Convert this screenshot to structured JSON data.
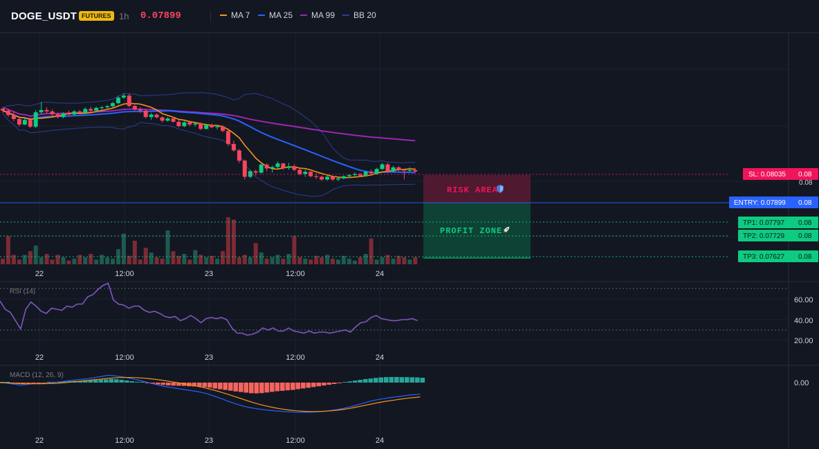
{
  "header": {
    "symbol": "DOGE_USDT",
    "badge": "FUTURES",
    "timeframe": "1h",
    "price": "0.07899",
    "indicators": [
      {
        "label": "MA 7",
        "color": "#f7931a"
      },
      {
        "label": "MA 25",
        "color": "#2962ff"
      },
      {
        "label": "MA 99",
        "color": "#9c27b0"
      },
      {
        "label": "BB 20",
        "color": "#2a3f8f"
      }
    ]
  },
  "colors": {
    "background": "#131722",
    "up": "#26a69a",
    "up_bright": "#0ecb81",
    "down": "#f6465d",
    "sl": "#f0145a",
    "entry": "#2962ff",
    "tp": "#0ecb81"
  },
  "zones": {
    "risk_label": "RISK AREA",
    "profit_label": "PROFIT ZONE"
  },
  "price_tags": {
    "sl": {
      "label": "SL: 0.08035",
      "right": "0.08",
      "value": 0.08035
    },
    "entry": {
      "label": "ENTRY: 0.07899",
      "right": "0.08",
      "value": 0.07899
    },
    "tp1": {
      "label": "TP1: 0.07797",
      "right": "0.08",
      "value": 0.07797
    },
    "tp2": {
      "label": "TP2: 0.07729",
      "right": "0.08",
      "value": 0.07729
    },
    "tp3": {
      "label": "TP3: 0.07627",
      "right": "0.08",
      "value": 0.07627
    }
  },
  "main_axis": {
    "hidden_tick": "0.08"
  },
  "time_axis": {
    "labels": [
      "22",
      "12:00",
      "23",
      "12:00",
      "24"
    ]
  },
  "rsi": {
    "label": "RSI (14)",
    "ticks": [
      "60.00",
      "40.00",
      "20.00"
    ],
    "values": [
      58,
      50,
      47,
      39,
      31,
      50,
      57,
      53,
      48,
      46,
      51,
      50,
      49,
      53,
      52,
      55,
      55,
      62,
      64,
      69,
      73,
      75,
      59,
      55,
      54,
      51,
      53,
      53,
      49,
      47,
      48,
      46,
      43,
      42,
      43,
      39,
      41,
      44,
      41,
      37,
      41,
      42,
      41,
      42,
      40,
      32,
      27,
      27,
      25,
      26,
      28,
      32,
      30,
      32,
      29,
      29,
      32,
      29,
      28,
      27,
      29,
      27,
      28,
      28,
      27,
      28,
      29,
      30,
      28,
      33,
      37,
      38,
      42,
      44,
      41,
      40,
      39,
      39,
      40,
      40,
      41,
      39
    ]
  },
  "macd": {
    "label": "MACD (12, 26, 9)",
    "tick": "0.00",
    "histogram": [
      0.2,
      0.1,
      -0.1,
      -0.3,
      -0.6,
      -0.5,
      -0.3,
      -0.2,
      -0.1,
      0.1,
      0.3,
      0.5,
      0.7,
      0.9,
      1.1,
      1.2,
      1.4,
      1.5,
      1.7,
      1.9,
      2.1,
      2.4,
      2.2,
      1.8,
      1.4,
      0.9,
      0.5,
      0.1,
      -0.4,
      -0.8,
      -1.2,
      -1.5,
      -1.8,
      -2.0,
      -2.1,
      -2.2,
      -2.4,
      -2.5,
      -2.6,
      -2.9,
      -3.3,
      -3.9,
      -4.4,
      -4.8,
      -5.3,
      -5.8,
      -6.2,
      -6.6,
      -7.0,
      -7.1,
      -6.9,
      -6.5,
      -6.1,
      -5.7,
      -5.4,
      -5.1,
      -4.8,
      -4.3,
      -3.8,
      -3.4,
      -2.9,
      -2.4,
      -1.9,
      -1.4,
      -0.9,
      -0.3,
      0.3,
      0.8,
      1.3,
      1.8,
      2.3,
      2.7,
      3.1,
      3.4,
      3.6,
      3.7,
      3.7,
      3.6,
      3.6,
      3.5,
      3.4,
      3.2
    ],
    "macd_line": [
      0.0,
      -0.3,
      -0.8,
      -1.3,
      -1.9,
      -1.5,
      -1.0,
      -0.8,
      -0.8,
      -0.6,
      -0.2,
      0.3,
      0.8,
      1.3,
      1.8,
      2.2,
      2.6,
      3.0,
      3.6,
      4.3,
      5.0,
      5.6,
      5.2,
      4.7,
      4.1,
      3.3,
      2.5,
      1.6,
      0.6,
      -0.4,
      -1.4,
      -2.3,
      -3.1,
      -3.8,
      -4.4,
      -5.0,
      -5.6,
      -6.2,
      -6.8,
      -7.6,
      -8.6,
      -9.9,
      -11.3,
      -12.7,
      -14.2,
      -15.6,
      -16.9,
      -18.0,
      -18.9,
      -19.6,
      -20.2,
      -20.7,
      -21.1,
      -21.5,
      -21.8,
      -22.1,
      -22.3,
      -22.5,
      -22.6,
      -22.6,
      -22.5,
      -22.3,
      -22.0,
      -21.6,
      -21.1,
      -20.5,
      -19.8,
      -18.9,
      -17.9,
      -16.8,
      -15.7,
      -14.6,
      -13.6,
      -12.8,
      -12.2,
      -11.6,
      -11.0,
      -10.5,
      -10.0,
      -9.5,
      -9.1,
      -8.8
    ],
    "signal_line": [
      0.0,
      -0.1,
      -0.3,
      -0.5,
      -0.8,
      -0.9,
      -0.9,
      -0.9,
      -0.9,
      -0.8,
      -0.7,
      -0.5,
      -0.2,
      0.1,
      0.5,
      0.9,
      1.3,
      1.7,
      2.1,
      2.5,
      2.9,
      3.3,
      3.6,
      3.8,
      3.9,
      3.9,
      3.8,
      3.6,
      3.3,
      2.9,
      2.4,
      1.9,
      1.3,
      0.7,
      0.1,
      -0.6,
      -1.3,
      -2.0,
      -2.8,
      -3.6,
      -4.5,
      -5.5,
      -6.6,
      -7.8,
      -9.0,
      -10.3,
      -11.6,
      -12.9,
      -14.2,
      -15.4,
      -16.5,
      -17.5,
      -18.4,
      -19.2,
      -19.9,
      -20.5,
      -21.0,
      -21.4,
      -21.7,
      -21.9,
      -22.0,
      -22.0,
      -21.9,
      -21.7,
      -21.4,
      -21.0,
      -20.5,
      -19.9,
      -19.2,
      -18.4,
      -17.6,
      -16.8,
      -16.0,
      -15.2,
      -14.5,
      -13.9,
      -13.3,
      -12.7,
      -12.2,
      -11.7,
      -11.3,
      -10.9
    ]
  },
  "chart_data": {
    "type": "candlestick",
    "symbol": "DOGE_USDT",
    "interval": "1h",
    "ohlc": [
      [
        0.08125,
        0.08129,
        0.0811,
        0.08118
      ],
      [
        0.08118,
        0.08125,
        0.08095,
        0.08102
      ],
      [
        0.08102,
        0.08115,
        0.0808,
        0.08088
      ],
      [
        0.08088,
        0.08098,
        0.0806,
        0.08068
      ],
      [
        0.08068,
        0.0809,
        0.08066,
        0.08085
      ],
      [
        0.08085,
        0.08094,
        0.08055,
        0.0806
      ],
      [
        0.0806,
        0.0812,
        0.08055,
        0.08112
      ],
      [
        0.08112,
        0.0815,
        0.08105,
        0.0812
      ],
      [
        0.0812,
        0.0813,
        0.08108,
        0.08115
      ],
      [
        0.08115,
        0.08122,
        0.08098,
        0.08105
      ],
      [
        0.08105,
        0.0811,
        0.0809,
        0.08095
      ],
      [
        0.08095,
        0.08112,
        0.0809,
        0.08108
      ],
      [
        0.08108,
        0.08118,
        0.081,
        0.08104
      ],
      [
        0.08104,
        0.0812,
        0.08102,
        0.08115
      ],
      [
        0.08115,
        0.0812,
        0.08105,
        0.0811
      ],
      [
        0.0811,
        0.0813,
        0.08108,
        0.08124
      ],
      [
        0.08124,
        0.08132,
        0.0811,
        0.08118
      ],
      [
        0.08118,
        0.08132,
        0.08115,
        0.08128
      ],
      [
        0.08128,
        0.08135,
        0.0812,
        0.0813
      ],
      [
        0.0813,
        0.08138,
        0.08124,
        0.08134
      ],
      [
        0.08134,
        0.0815,
        0.0813,
        0.08145
      ],
      [
        0.08145,
        0.08172,
        0.0814,
        0.08165
      ],
      [
        0.08165,
        0.0818,
        0.0816,
        0.08172
      ],
      [
        0.08172,
        0.0818,
        0.0813,
        0.08135
      ],
      [
        0.08135,
        0.08145,
        0.08118,
        0.08122
      ],
      [
        0.08122,
        0.0813,
        0.0811,
        0.08118
      ],
      [
        0.08118,
        0.08125,
        0.0809,
        0.08095
      ],
      [
        0.08095,
        0.0811,
        0.08085,
        0.08104
      ],
      [
        0.08104,
        0.08108,
        0.0809,
        0.08094
      ],
      [
        0.08094,
        0.08098,
        0.08075,
        0.08082
      ],
      [
        0.08082,
        0.08095,
        0.08078,
        0.0809
      ],
      [
        0.0809,
        0.08096,
        0.08075,
        0.08078
      ],
      [
        0.08078,
        0.08085,
        0.08058,
        0.08062
      ],
      [
        0.08062,
        0.0808,
        0.08058,
        0.08076
      ],
      [
        0.08076,
        0.08082,
        0.08062,
        0.08068
      ],
      [
        0.08068,
        0.08075,
        0.0806,
        0.08072
      ],
      [
        0.08072,
        0.08076,
        0.08048,
        0.08052
      ],
      [
        0.08052,
        0.0807,
        0.0805,
        0.08066
      ],
      [
        0.08066,
        0.08072,
        0.08055,
        0.08058
      ],
      [
        0.08058,
        0.08065,
        0.0805,
        0.08061
      ],
      [
        0.08061,
        0.08066,
        0.0804,
        0.08045
      ],
      [
        0.08045,
        0.0805,
        0.0799,
        0.07998
      ],
      [
        0.07998,
        0.0801,
        0.0797,
        0.07975
      ],
      [
        0.07975,
        0.0798,
        0.0793,
        0.07938
      ],
      [
        0.07938,
        0.07942,
        0.0787,
        0.0788
      ],
      [
        0.0788,
        0.07905,
        0.07875,
        0.079
      ],
      [
        0.079,
        0.07906,
        0.07885,
        0.07895
      ],
      [
        0.07895,
        0.0793,
        0.0789,
        0.07924
      ],
      [
        0.07924,
        0.07928,
        0.079,
        0.0791
      ],
      [
        0.0791,
        0.0792,
        0.07895,
        0.07915
      ],
      [
        0.07915,
        0.07935,
        0.0791,
        0.07928
      ],
      [
        0.07928,
        0.0793,
        0.07905,
        0.07912
      ],
      [
        0.07912,
        0.0793,
        0.07905,
        0.07918
      ],
      [
        0.07918,
        0.07925,
        0.079,
        0.07905
      ],
      [
        0.07905,
        0.0791,
        0.07885,
        0.0789
      ],
      [
        0.0789,
        0.07905,
        0.0788,
        0.07898
      ],
      [
        0.07898,
        0.079,
        0.07878,
        0.07882
      ],
      [
        0.07882,
        0.07892,
        0.07872,
        0.0788
      ],
      [
        0.0788,
        0.07884,
        0.07865,
        0.0787
      ],
      [
        0.0787,
        0.07885,
        0.07866,
        0.0788
      ],
      [
        0.0788,
        0.07882,
        0.07865,
        0.0787
      ],
      [
        0.0787,
        0.07878,
        0.07864,
        0.07874
      ],
      [
        0.07874,
        0.07885,
        0.0787,
        0.07882
      ],
      [
        0.07882,
        0.0789,
        0.07875,
        0.07886
      ],
      [
        0.07886,
        0.07896,
        0.0788,
        0.0789
      ],
      [
        0.0789,
        0.07894,
        0.0788,
        0.07884
      ],
      [
        0.07884,
        0.07902,
        0.0788,
        0.07898
      ],
      [
        0.07898,
        0.07906,
        0.0789,
        0.07892
      ],
      [
        0.07892,
        0.07912,
        0.07888,
        0.07908
      ],
      [
        0.07908,
        0.0793,
        0.07904,
        0.07925
      ],
      [
        0.07925,
        0.0793,
        0.07895,
        0.079
      ],
      [
        0.079,
        0.0792,
        0.07895,
        0.07914
      ],
      [
        0.07914,
        0.07918,
        0.079,
        0.07906
      ],
      [
        0.07906,
        0.07908,
        0.0787,
        0.07902
      ],
      [
        0.07902,
        0.07915,
        0.07898,
        0.07904
      ],
      [
        0.07904,
        0.07912,
        0.07895,
        0.07899
      ]
    ],
    "volume_relative": [
      0.12,
      0.6,
      0.2,
      0.1,
      0.2,
      0.28,
      0.4,
      0.15,
      0.22,
      0.1,
      0.2,
      0.15,
      0.08,
      0.12,
      0.2,
      0.15,
      0.22,
      0.1,
      0.2,
      0.15,
      0.12,
      0.32,
      0.28,
      0.18,
      0.5,
      0.1,
      0.35,
      0.25,
      0.15,
      0.12,
      0.2,
      0.28,
      0.18,
      0.22,
      0.1,
      0.3,
      0.2,
      0.15,
      0.18,
      0.12,
      0.28,
      0.2,
      0.12,
      0.15,
      0.2,
      0.15,
      0.45,
      0.25,
      0.12,
      0.15,
      0.2,
      0.12,
      0.22,
      0.18,
      0.15,
      0.12,
      0.1,
      0.18,
      0.15,
      0.2,
      0.12,
      0.1,
      0.18,
      0.12,
      0.08,
      0.15,
      0.22,
      0.12,
      0.1,
      0.15,
      0.2,
      0.12,
      0.18,
      0.15,
      0.1,
      0.15
    ],
    "volume_spikes": {
      "41": 1.0,
      "42": 0.95,
      "30": 0.72,
      "22": 0.65,
      "53": 0.6,
      "67": 0.55
    },
    "y_range": [
      0.0759,
      0.0825
    ]
  }
}
